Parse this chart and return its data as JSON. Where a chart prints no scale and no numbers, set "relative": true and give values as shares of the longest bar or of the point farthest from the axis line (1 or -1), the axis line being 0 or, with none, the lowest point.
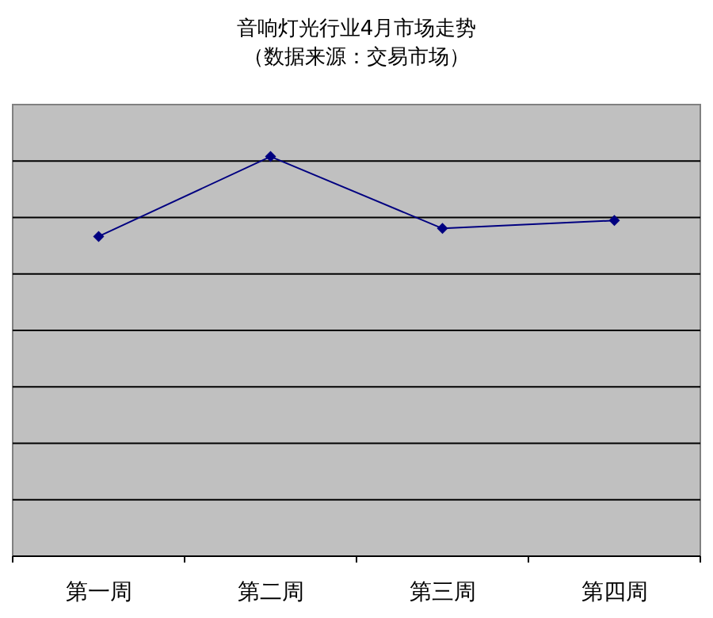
{
  "chart_data": {
    "type": "line",
    "title": "音响灯光行业4月市场走势",
    "subtitle": "（数据来源：交易市场）",
    "categories": [
      "第一周",
      "第二周",
      "第三周",
      "第四周"
    ],
    "relative": true,
    "grid": "y",
    "marker": "diamond",
    "line_style": "solid",
    "series": [
      {
        "color": "#000080",
        "values": [
          0.8,
          1,
          0.82,
          0.84
        ]
      }
    ]
  }
}
